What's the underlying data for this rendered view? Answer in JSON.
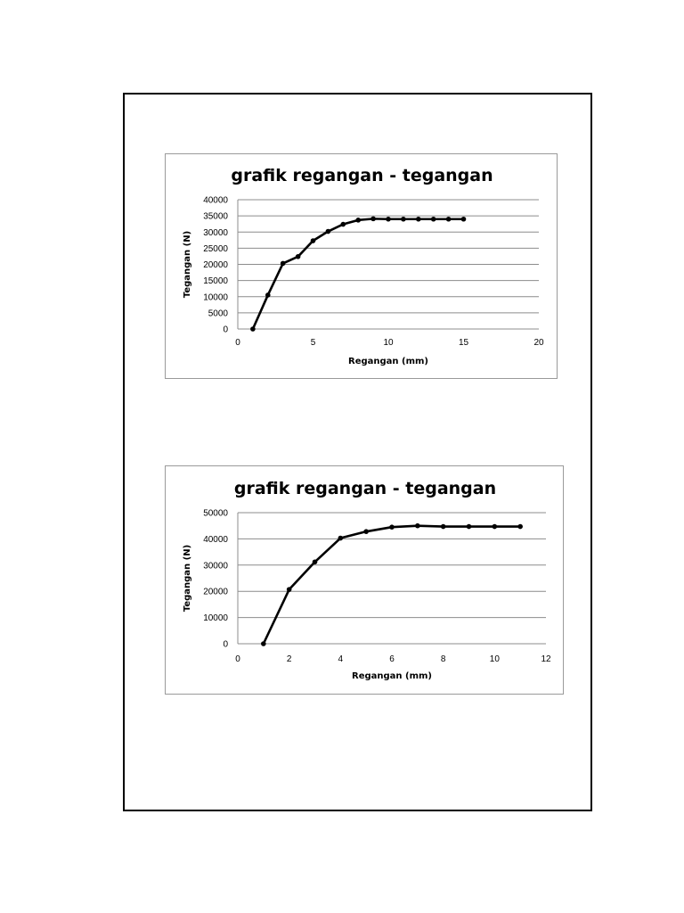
{
  "chart_data": [
    {
      "type": "line",
      "title": "grafik regangan - tegangan",
      "xlabel": "Regangan (mm)",
      "ylabel": "Tegangan (N)",
      "xlim": [
        0,
        20
      ],
      "ylim": [
        0,
        40000
      ],
      "xticks": [
        0,
        5,
        10,
        15,
        20
      ],
      "yticks": [
        0,
        5000,
        10000,
        15000,
        20000,
        25000,
        30000,
        35000,
        40000
      ],
      "grid": true,
      "legend": "none",
      "x": [
        1,
        2,
        3,
        4,
        5,
        6,
        7,
        8,
        9,
        10,
        11,
        12,
        13,
        14,
        15
      ],
      "series": [
        {
          "values": [
            0,
            10500,
            20300,
            22400,
            27300,
            30200,
            32400,
            33700,
            34100,
            34000,
            34000,
            34000,
            34000,
            34000,
            34000
          ]
        }
      ]
    },
    {
      "type": "line",
      "title": "grafik regangan - tegangan",
      "xlabel": "Regangan (mm)",
      "ylabel": "Tegangan (N)",
      "xlim": [
        0,
        12
      ],
      "ylim": [
        0,
        50000
      ],
      "xticks": [
        0,
        2,
        4,
        6,
        8,
        10,
        12
      ],
      "yticks": [
        0,
        10000,
        20000,
        30000,
        40000,
        50000
      ],
      "grid": true,
      "legend": "none",
      "x": [
        1,
        2,
        3,
        4,
        5,
        6,
        7,
        8,
        9,
        10,
        11
      ],
      "series": [
        {
          "values": [
            0,
            20700,
            31200,
            40300,
            42800,
            44500,
            45000,
            44700,
            44700,
            44700,
            44700
          ]
        }
      ]
    }
  ]
}
